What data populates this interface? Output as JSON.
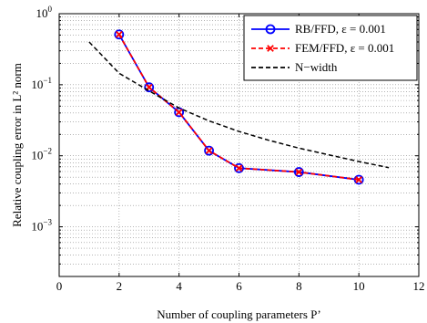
{
  "chart_data": {
    "type": "line",
    "xlabel": "Number of coupling parameters P’",
    "ylabel": "Relative coupling error in L² norm",
    "xlim": [
      0,
      12
    ],
    "ylim": [
      0.0002,
      1
    ],
    "yscale": "log",
    "x_ticks": [
      0,
      2,
      4,
      6,
      8,
      10,
      12
    ],
    "y_ticks": [
      {
        "value": 0.001,
        "base": "10",
        "exp": "−3"
      },
      {
        "value": 0.01,
        "base": "10",
        "exp": "−2"
      },
      {
        "value": 0.1,
        "base": "10",
        "exp": "−1"
      },
      {
        "value": 1,
        "base": "10",
        "exp": "0"
      }
    ],
    "grid": true,
    "legend_position": "top-right",
    "series": [
      {
        "name": "RB/FFD, ε = 0.001",
        "color": "#0000ff",
        "style": "solid-circle",
        "x": [
          2,
          3,
          4,
          5,
          6,
          8,
          10
        ],
        "y": [
          0.51,
          0.092,
          0.041,
          0.0118,
          0.0067,
          0.0059,
          0.0046
        ]
      },
      {
        "name": "FEM/FFD, ε = 0.001",
        "color": "#ff0000",
        "style": "dashed-cross",
        "x": [
          2,
          3,
          4,
          5,
          6,
          8,
          10
        ],
        "y": [
          0.51,
          0.092,
          0.041,
          0.0118,
          0.0067,
          0.0059,
          0.0046
        ]
      },
      {
        "name": "N−width",
        "color": "#000000",
        "style": "dashed",
        "x": [
          1,
          2,
          3,
          4,
          5,
          6,
          7,
          8,
          9,
          10,
          11
        ],
        "y": [
          0.4,
          0.145,
          0.082,
          0.047,
          0.031,
          0.022,
          0.0165,
          0.0128,
          0.0103,
          0.0083,
          0.0068
        ]
      }
    ]
  }
}
